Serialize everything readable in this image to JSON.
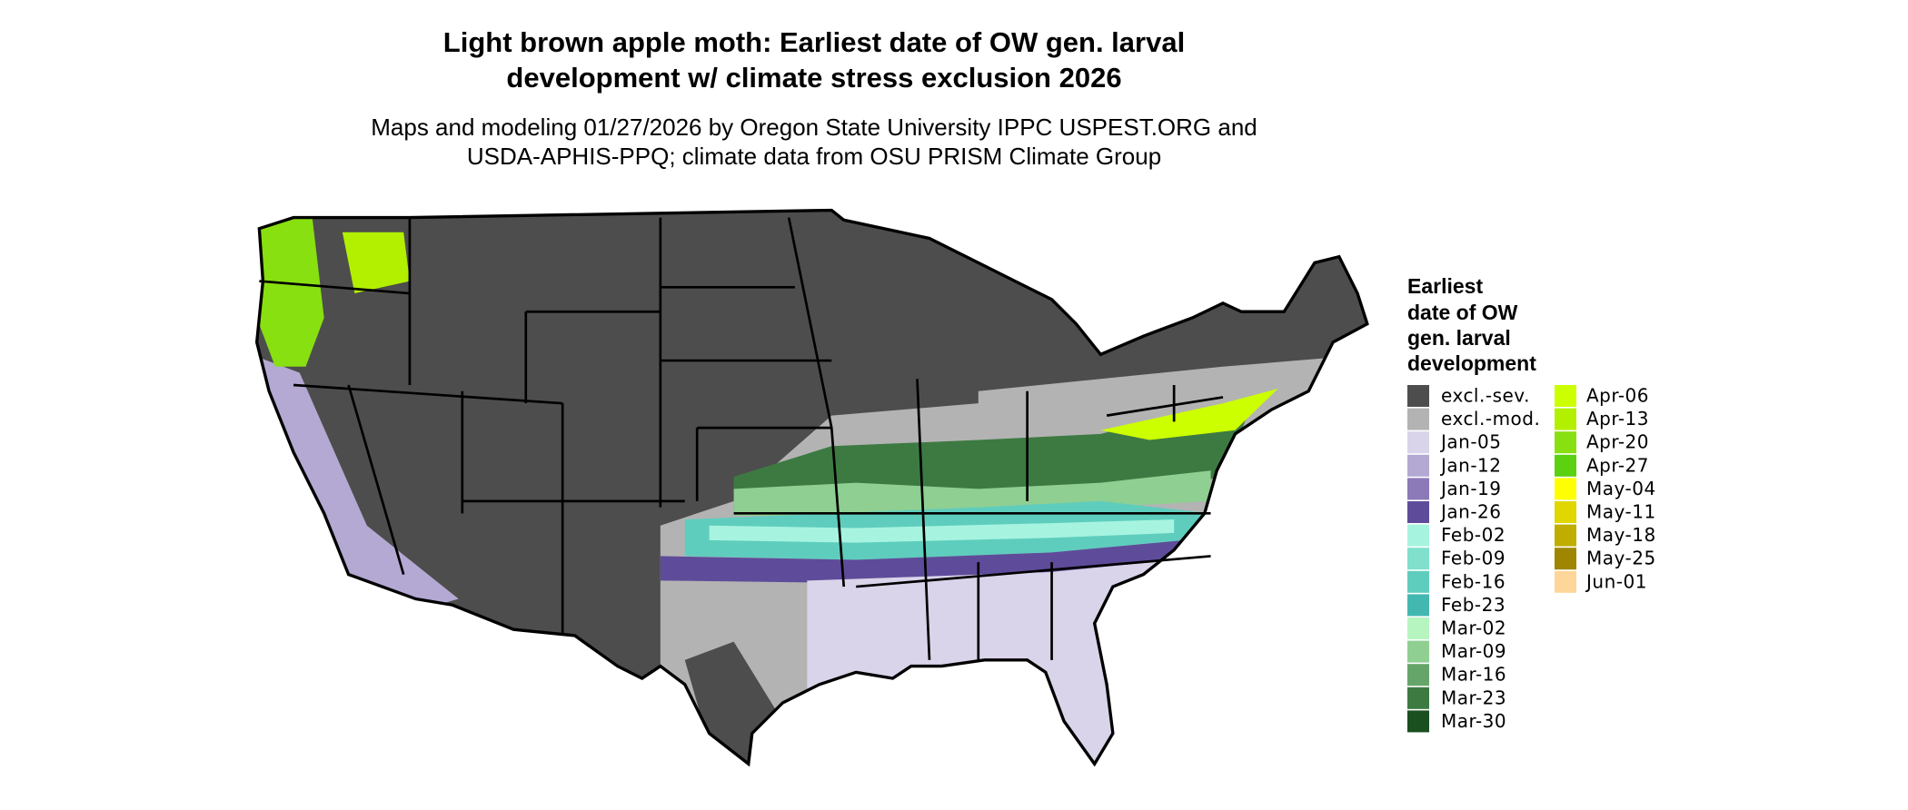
{
  "title": [
    "Light brown apple moth: Earliest date of OW gen. larval",
    "development w/ climate stress exclusion 2026"
  ],
  "subtitle": [
    "Maps and modeling 01/27/2026 by Oregon State University IPPC USPEST.ORG and",
    "USDA-APHIS-PPQ; climate data from OSU PRISM Climate Group"
  ],
  "legend": {
    "title": [
      "Earliest",
      "date of OW",
      "gen. larval",
      "development"
    ],
    "items": [
      {
        "label": "excl.-sev.",
        "color": "#4d4d4d"
      },
      {
        "label": "excl.-mod.",
        "color": "#b3b3b3"
      },
      {
        "label": "Jan-05",
        "color": "#dad4ea"
      },
      {
        "label": "Jan-12",
        "color": "#b3a9d3"
      },
      {
        "label": "Jan-19",
        "color": "#8b79b8"
      },
      {
        "label": "Jan-26",
        "color": "#5e4c9a"
      },
      {
        "label": "Feb-02",
        "color": "#a6f4e0"
      },
      {
        "label": "Feb-09",
        "color": "#80e0cc"
      },
      {
        "label": "Feb-16",
        "color": "#5fcdbd"
      },
      {
        "label": "Feb-23",
        "color": "#43b8b0"
      },
      {
        "label": "Mar-02",
        "color": "#b6f5c0"
      },
      {
        "label": "Mar-09",
        "color": "#8fcf92"
      },
      {
        "label": "Mar-16",
        "color": "#66a56a"
      },
      {
        "label": "Mar-23",
        "color": "#3d7a42"
      },
      {
        "label": "Mar-30",
        "color": "#1a4f1f"
      },
      {
        "label": "Apr-06",
        "color": "#ccff00"
      },
      {
        "label": "Apr-13",
        "color": "#b2f000"
      },
      {
        "label": "Apr-20",
        "color": "#88e010"
      },
      {
        "label": "Apr-27",
        "color": "#5cd10f"
      },
      {
        "label": "May-04",
        "color": "#ffff00"
      },
      {
        "label": "May-11",
        "color": "#e0d600"
      },
      {
        "label": "May-18",
        "color": "#bfad00"
      },
      {
        "label": "May-25",
        "color": "#9e8600"
      },
      {
        "label": "Jun-01",
        "color": "#ffd699"
      }
    ]
  }
}
